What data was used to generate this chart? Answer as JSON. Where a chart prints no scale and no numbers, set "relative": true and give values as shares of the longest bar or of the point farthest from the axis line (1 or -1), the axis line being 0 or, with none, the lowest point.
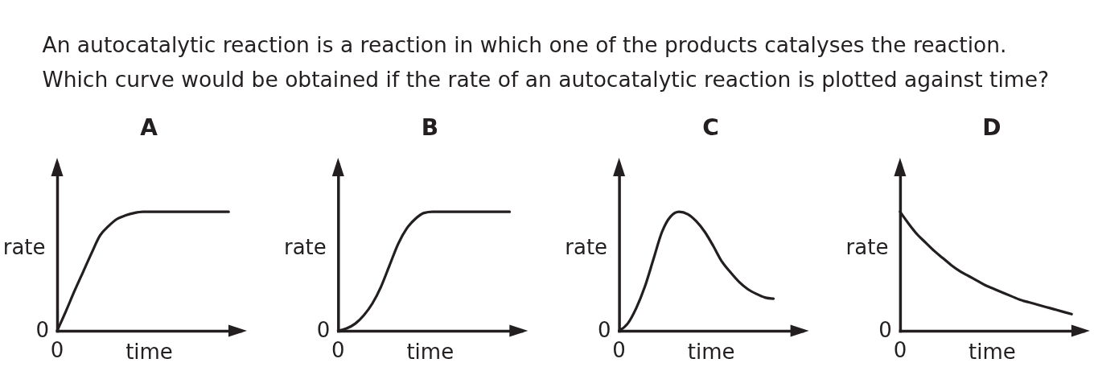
{
  "chart_data": [
    {
      "type": "other",
      "annotations": [
        "An autocatalytic reaction is a reaction in which one of the products catalyses the reaction.",
        "Which curve would be obtained if the rate of an autocatalytic reaction is plotted against time?"
      ]
    },
    {
      "type": "line",
      "title": "A",
      "xlabel": "time",
      "ylabel": "rate",
      "relative": true,
      "color": "#231f20",
      "annotations": [
        "0",
        "0"
      ],
      "categories": [
        null,
        null,
        null,
        null,
        null,
        null,
        null,
        null,
        null,
        null,
        null,
        null,
        null,
        null,
        null,
        null,
        null,
        null,
        null,
        null,
        null
      ],
      "values": [
        0,
        0.16,
        0.33,
        0.49,
        0.65,
        0.8,
        0.88,
        0.94,
        0.97,
        0.99,
        1,
        1,
        1,
        1,
        1,
        1,
        1,
        1,
        1,
        1,
        1
      ]
    },
    {
      "type": "line",
      "title": "B",
      "xlabel": "time",
      "ylabel": "rate",
      "relative": true,
      "color": "#231f20",
      "annotations": [
        "0",
        "0"
      ],
      "categories": [
        null,
        null,
        null,
        null,
        null,
        null,
        null,
        null,
        null,
        null,
        null,
        null,
        null,
        null,
        null,
        null,
        null,
        null,
        null,
        null,
        null
      ],
      "values": [
        0,
        0.02,
        0.06,
        0.13,
        0.23,
        0.37,
        0.55,
        0.73,
        0.86,
        0.94,
        0.99,
        1,
        1,
        1,
        1,
        1,
        1,
        1,
        1,
        1,
        1
      ]
    },
    {
      "type": "line",
      "title": "C",
      "xlabel": "time",
      "ylabel": "rate",
      "relative": true,
      "color": "#231f20",
      "annotations": [
        "0",
        "0"
      ],
      "categories": [
        null,
        null,
        null,
        null,
        null,
        null,
        null,
        null,
        null,
        null,
        null,
        null,
        null,
        null,
        null,
        null,
        null,
        null,
        null
      ],
      "values": [
        0,
        0.06,
        0.19,
        0.37,
        0.6,
        0.83,
        0.96,
        1,
        0.98,
        0.92,
        0.83,
        0.71,
        0.58,
        0.49,
        0.41,
        0.35,
        0.31,
        0.28,
        0.27
      ]
    },
    {
      "type": "line",
      "title": "D",
      "xlabel": "time",
      "ylabel": "rate",
      "relative": true,
      "color": "#231f20",
      "annotations": [
        "0",
        "0"
      ],
      "categories": [
        null,
        null,
        null,
        null,
        null,
        null,
        null,
        null,
        null,
        null,
        null,
        null,
        null,
        null,
        null,
        null,
        null,
        null,
        null,
        null,
        null
      ],
      "values": [
        1,
        0.9,
        0.81,
        0.74,
        0.67,
        0.61,
        0.55,
        0.5,
        0.46,
        0.42,
        0.38,
        0.35,
        0.32,
        0.29,
        0.26,
        0.24,
        0.22,
        0.2,
        0.18,
        0.16,
        0.14
      ]
    }
  ]
}
